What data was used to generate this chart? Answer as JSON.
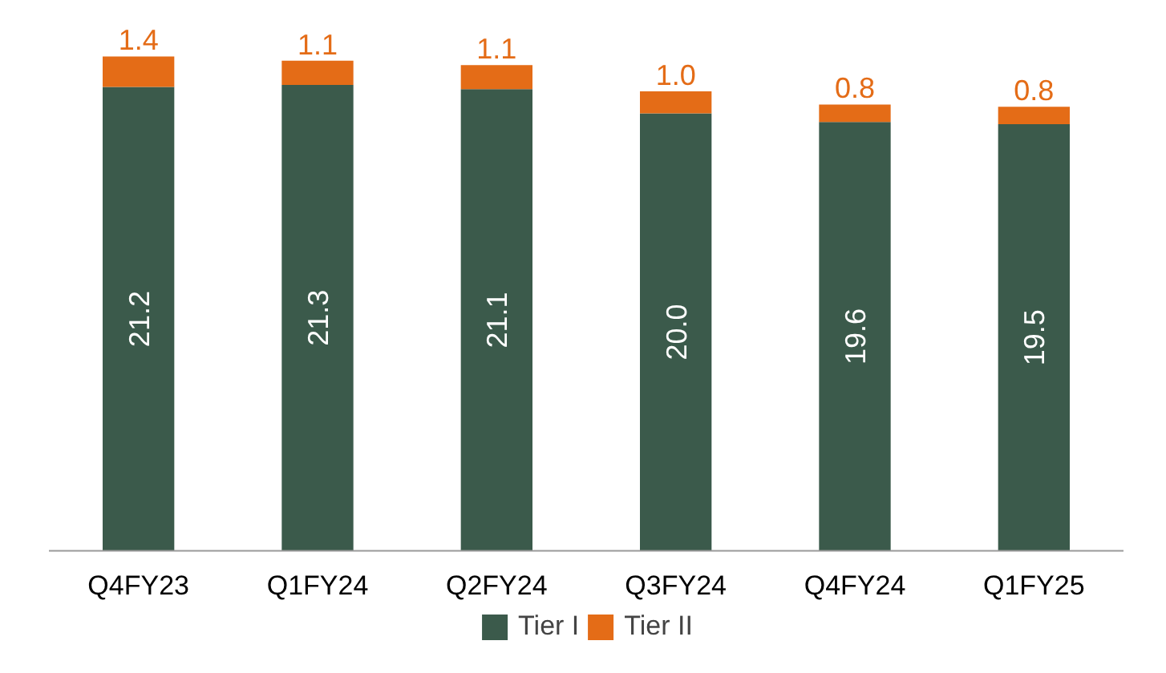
{
  "chart_data": {
    "type": "bar",
    "stacked": true,
    "legend": "bottom",
    "categories": [
      "Q4FY23",
      "Q1FY24",
      "Q2FY24",
      "Q3FY24",
      "Q4FY24",
      "Q1FY25"
    ],
    "series": [
      {
        "name": "Tier I",
        "color": "#3b5a4b",
        "values": [
          21.2,
          21.3,
          21.1,
          20.0,
          19.6,
          19.5
        ],
        "value_labels": [
          "21.2",
          "21.3",
          "21.1",
          "20.0",
          "19.6",
          "19.5"
        ]
      },
      {
        "name": "Tier II",
        "color": "#e46c17",
        "values": [
          1.4,
          1.1,
          1.1,
          1.0,
          0.8,
          0.8
        ],
        "value_labels": [
          "1.4",
          "1.1",
          "1.1",
          "1.0",
          "0.8",
          "0.8"
        ]
      }
    ]
  }
}
